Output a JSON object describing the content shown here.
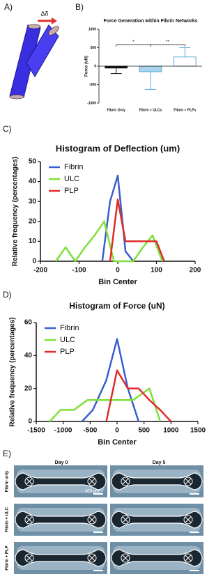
{
  "panel_labels": [
    "A)",
    "B)",
    "C)",
    "D)",
    "E)"
  ],
  "diagram": {
    "arrow_label": "Δδ"
  },
  "chart_data": [
    {
      "type": "bar",
      "title": "Force Generation within Fibrin Networks",
      "y_label": "Force (uN)",
      "categories": [
        "Fibrin Only",
        "Fibrin + ULCs",
        "Fibrin + PLPs"
      ],
      "values": [
        -50,
        -150,
        250
      ],
      "errors": [
        150,
        480,
        250
      ],
      "colors": [
        "#111111",
        "#a9d3ee",
        "#ffffff"
      ],
      "edge_colors": [
        "#111111",
        "#5aa9d6",
        "#5aa9d6"
      ],
      "annotations": [
        "*",
        "**"
      ],
      "ylim": [
        -1000,
        1000
      ],
      "yticks": [
        -1000,
        -500,
        0,
        500,
        1000
      ]
    },
    {
      "type": "line",
      "title": "Histogram of Deflection (um)",
      "x_label": "Bin Center",
      "y_label": "Relative frequency (percentages)",
      "legend": "upper left",
      "series": [
        {
          "name": "Fibrin",
          "color": "#3a5fcd",
          "x": [
            -40,
            -20,
            0,
            20,
            40
          ],
          "values": [
            0,
            30,
            43,
            5,
            0
          ]
        },
        {
          "name": "ULC",
          "color": "#7ee03a",
          "x": [
            -160,
            -135,
            -110,
            -85,
            -60,
            -35,
            -10,
            15,
            40,
            65,
            90,
            115
          ],
          "values": [
            0,
            7,
            0,
            7,
            13,
            20,
            0,
            0,
            0,
            7,
            13,
            0
          ]
        },
        {
          "name": "PLP",
          "color": "#e02a2a",
          "x": [
            -20,
            0,
            20,
            40,
            60,
            80,
            100,
            120
          ],
          "values": [
            0,
            31,
            10,
            10,
            10,
            10,
            10,
            0
          ]
        }
      ],
      "xlim": [
        -200,
        200
      ],
      "xticks": [
        -200,
        -100,
        0,
        100,
        200
      ],
      "ylim": [
        0,
        50
      ],
      "yticks": [
        0,
        10,
        20,
        30,
        40,
        50
      ]
    },
    {
      "type": "line",
      "title": "Histogram of Force (uN)",
      "x_label": "Bin Center",
      "y_label": "Relative frequency (percentages)",
      "legend": "upper left",
      "series": [
        {
          "name": "Fibrin",
          "color": "#3a5fcd",
          "x": [
            -650,
            -450,
            -200,
            0,
            200,
            400
          ],
          "values": [
            0,
            7,
            25,
            50,
            20,
            0
          ]
        },
        {
          "name": "ULC",
          "color": "#7ee03a",
          "x": [
            -1250,
            -1050,
            -800,
            -550,
            -300,
            0,
            300,
            600,
            800
          ],
          "values": [
            0,
            7,
            7,
            13,
            13,
            13,
            13,
            20,
            0
          ]
        },
        {
          "name": "PLP",
          "color": "#e02a2a",
          "x": [
            -200,
            0,
            200,
            400,
            600,
            800,
            1000
          ],
          "values": [
            0,
            31,
            20,
            20,
            13,
            7,
            0
          ]
        }
      ],
      "xlim": [
        -1500,
        1500
      ],
      "xticks": [
        -1500,
        -1000,
        -500,
        0,
        500,
        1000,
        1500
      ],
      "ylim": [
        0,
        60
      ],
      "yticks": [
        0,
        20,
        40,
        60
      ]
    }
  ],
  "images": {
    "columns": [
      "Day 0",
      "Day 5"
    ],
    "rows": [
      "Fibrin only",
      "Fibrin + ULC",
      "Fibrin + PLP"
    ],
    "scale_bar": "400 μm"
  }
}
